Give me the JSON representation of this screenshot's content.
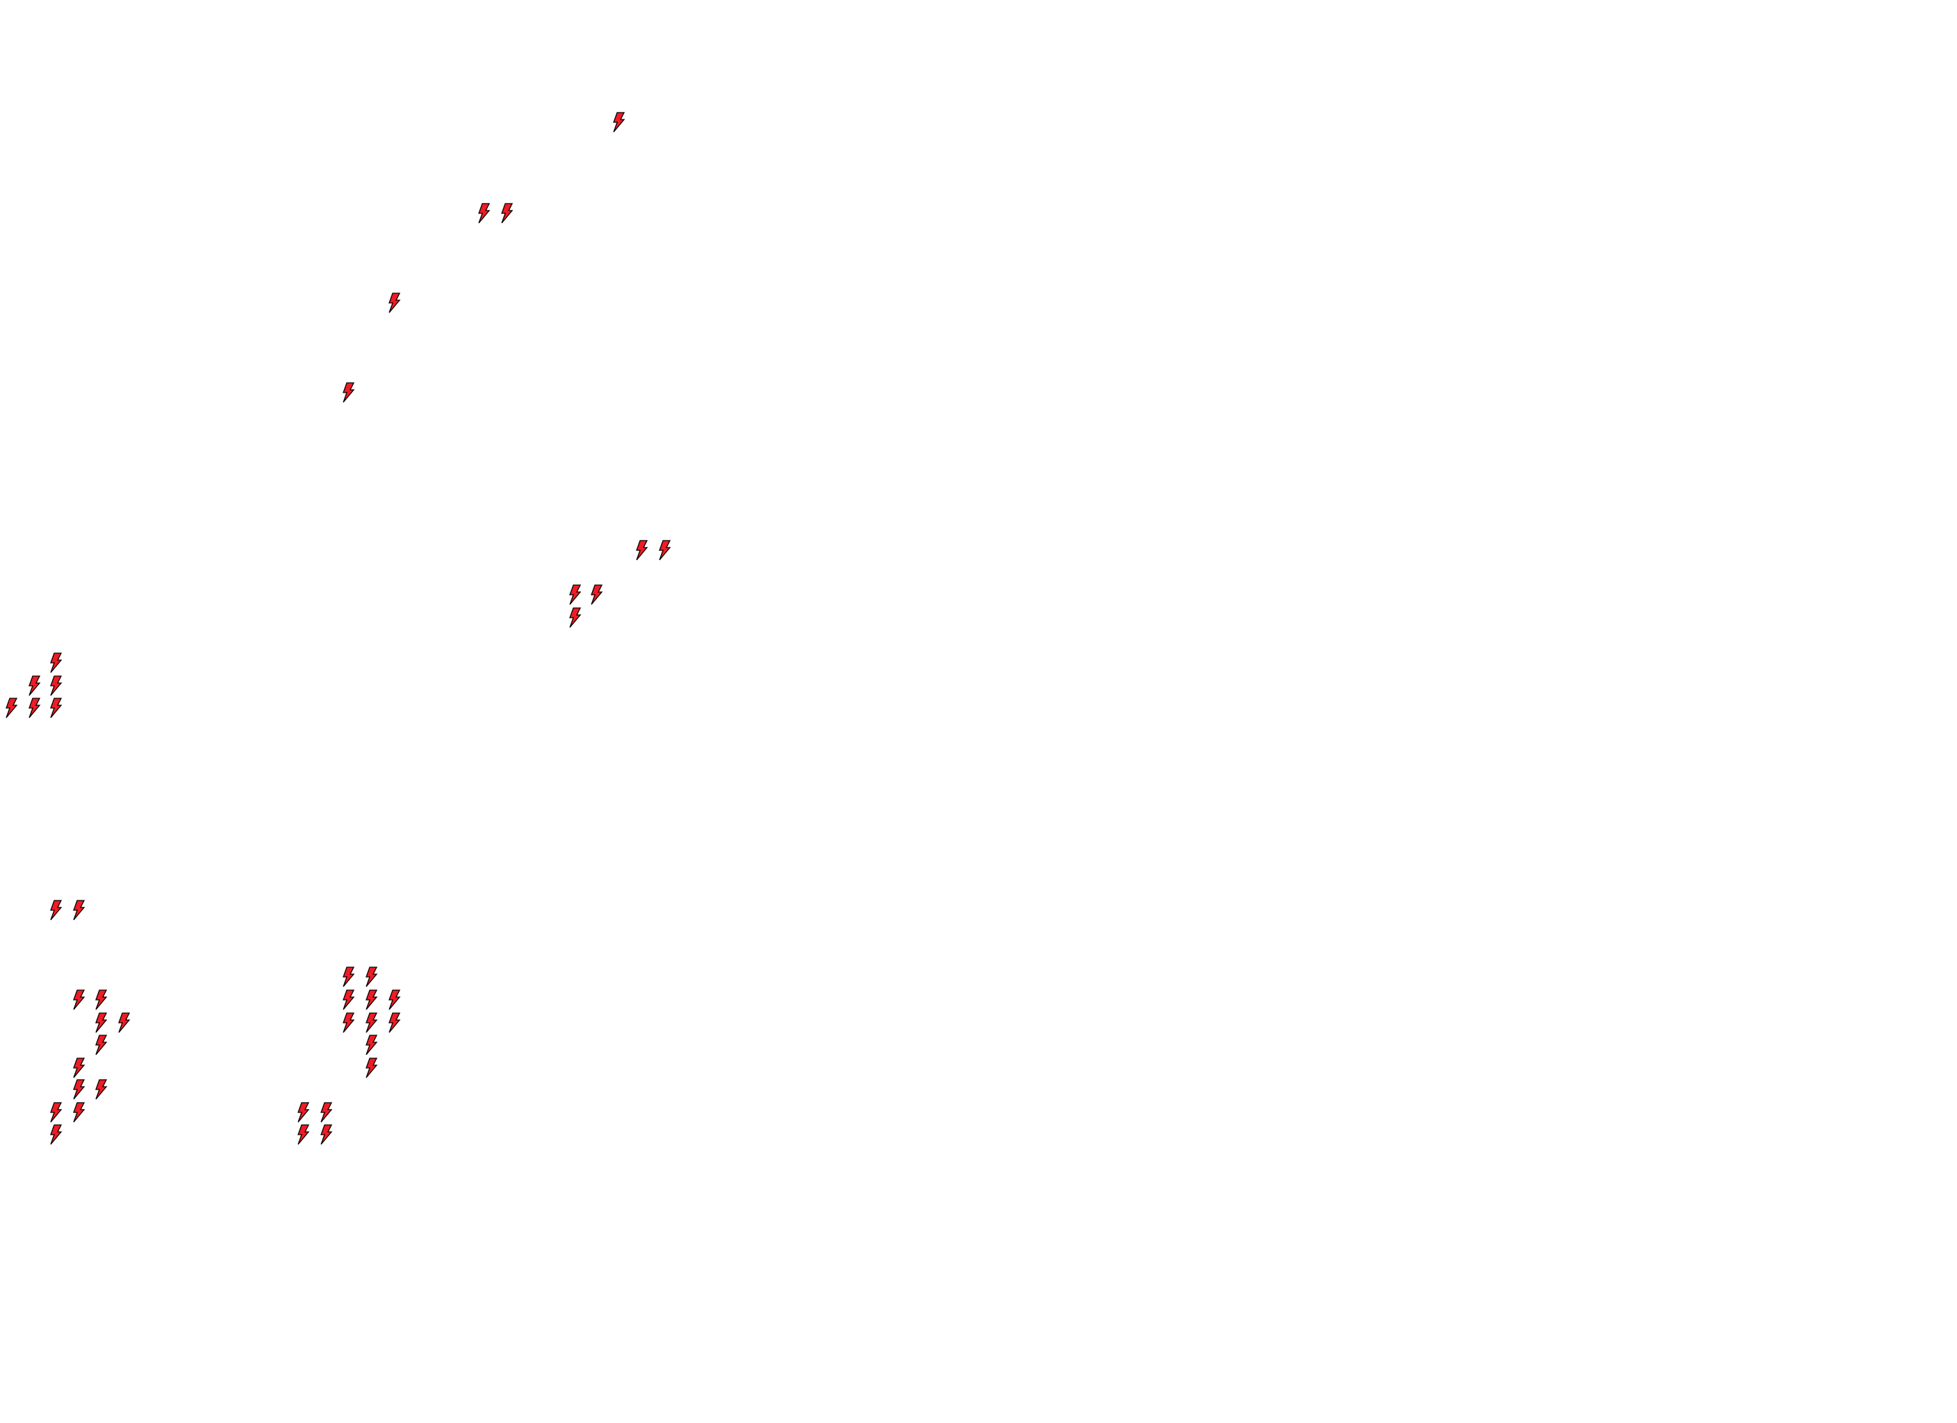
{
  "map": {
    "marker_icon": "lightning-bolt-icon",
    "marker_fill": "#ee1c25",
    "marker_stroke": "#000000",
    "background": "#ffffff"
  }
}
